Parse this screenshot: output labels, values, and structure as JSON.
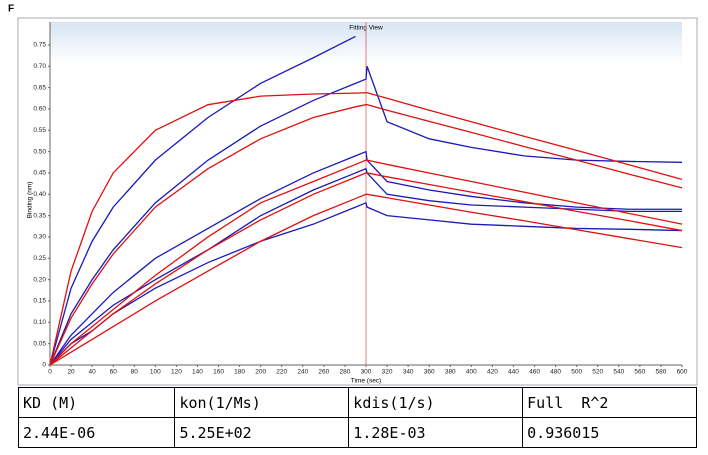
{
  "panel_label": "F",
  "chart_data": {
    "type": "line",
    "title": "Fitting View",
    "x_label": "Time (sec)",
    "y_label": "Binding (nm)",
    "x": [
      0,
      20,
      40,
      60,
      100,
      150,
      200,
      250,
      290,
      300,
      301,
      320,
      360,
      400,
      450,
      500,
      550,
      600
    ],
    "series": [
      {
        "color": "#1a1ab8",
        "values": [
          0,
          0.18,
          0.29,
          0.37,
          0.48,
          0.58,
          0.66,
          0.72,
          0.77,
          null,
          null,
          null,
          null,
          null,
          null,
          null,
          null,
          null
        ]
      },
      {
        "color": "#1a1ab8",
        "values": [
          0,
          0.12,
          0.2,
          0.27,
          0.38,
          0.48,
          0.56,
          0.62,
          0.66,
          0.67,
          0.7,
          0.57,
          0.53,
          0.51,
          0.49,
          0.48,
          0.477,
          0.475
        ]
      },
      {
        "color": "#1a1ab8",
        "values": [
          0,
          0.07,
          0.12,
          0.17,
          0.25,
          0.32,
          0.39,
          0.45,
          0.49,
          0.5,
          0.48,
          0.43,
          0.41,
          0.395,
          0.38,
          0.37,
          0.365,
          0.365
        ]
      },
      {
        "color": "#1a1ab8",
        "values": [
          0,
          0.06,
          0.1,
          0.14,
          0.2,
          0.27,
          0.35,
          0.41,
          0.45,
          0.46,
          0.45,
          0.4,
          0.385,
          0.375,
          0.37,
          0.365,
          0.36,
          0.36
        ]
      },
      {
        "color": "#1a1ab8",
        "values": [
          0,
          0.05,
          0.08,
          0.12,
          0.18,
          0.24,
          0.29,
          0.33,
          0.37,
          0.38,
          0.37,
          0.35,
          0.34,
          0.33,
          0.325,
          0.32,
          0.318,
          0.315
        ]
      },
      {
        "color": "#e01010",
        "values": [
          0,
          0.22,
          0.36,
          0.45,
          0.55,
          0.61,
          0.63,
          0.635,
          0.637,
          0.638,
          0.638,
          0.625,
          0.597,
          0.57,
          0.536,
          0.503,
          0.469,
          0.435
        ]
      },
      {
        "color": "#e01010",
        "values": [
          0,
          0.11,
          0.19,
          0.26,
          0.37,
          0.46,
          0.53,
          0.58,
          0.605,
          0.61,
          0.61,
          0.597,
          0.571,
          0.545,
          0.512,
          0.48,
          0.447,
          0.415
        ]
      },
      {
        "color": "#e01010",
        "values": [
          0,
          0.05,
          0.09,
          0.13,
          0.21,
          0.3,
          0.38,
          0.43,
          0.47,
          0.48,
          0.48,
          0.47,
          0.45,
          0.43,
          0.405,
          0.38,
          0.355,
          0.33
        ]
      },
      {
        "color": "#e01010",
        "values": [
          0,
          0.04,
          0.08,
          0.12,
          0.19,
          0.27,
          0.34,
          0.4,
          0.44,
          0.45,
          0.45,
          0.441,
          0.423,
          0.405,
          0.383,
          0.36,
          0.338,
          0.315
        ]
      },
      {
        "color": "#e01010",
        "values": [
          0,
          0.03,
          0.06,
          0.09,
          0.15,
          0.22,
          0.29,
          0.35,
          0.39,
          0.4,
          0.4,
          0.392,
          0.375,
          0.358,
          0.338,
          0.317,
          0.296,
          0.275
        ]
      }
    ],
    "vline_x": 300,
    "vline_color": "#e06060",
    "xlim": [
      0,
      600
    ],
    "ylim": [
      0,
      0.785
    ],
    "grid": false,
    "xticks": [
      0,
      20,
      40,
      60,
      80,
      100,
      120,
      140,
      160,
      180,
      200,
      220,
      240,
      260,
      280,
      300,
      320,
      340,
      360,
      380,
      400,
      420,
      440,
      460,
      480,
      500,
      520,
      540,
      560,
      580,
      600
    ],
    "yticks": [
      0,
      0.05,
      {
        "value": 0.1,
        "label": "0.10"
      },
      0.15,
      {
        "value": 0.2,
        "label": "0.20"
      },
      0.25,
      {
        "value": 0.3,
        "label": "0.30"
      },
      0.35,
      {
        "value": 0.4,
        "label": "0.40"
      },
      0.45,
      {
        "value": 0.5,
        "label": "0.50"
      },
      0.55,
      {
        "value": 0.6,
        "label": "0.60"
      },
      0.65,
      {
        "value": 0.7,
        "label": "0.70"
      },
      0.75
    ]
  },
  "table": {
    "header": [
      "KD (M)",
      "kon(1/Ms)",
      "kdis(1/s)",
      "Full  R^2"
    ],
    "rows": [
      [
        "2.44E-06",
        "5.25E+02",
        "1.28E-03",
        "0.936015"
      ]
    ]
  }
}
